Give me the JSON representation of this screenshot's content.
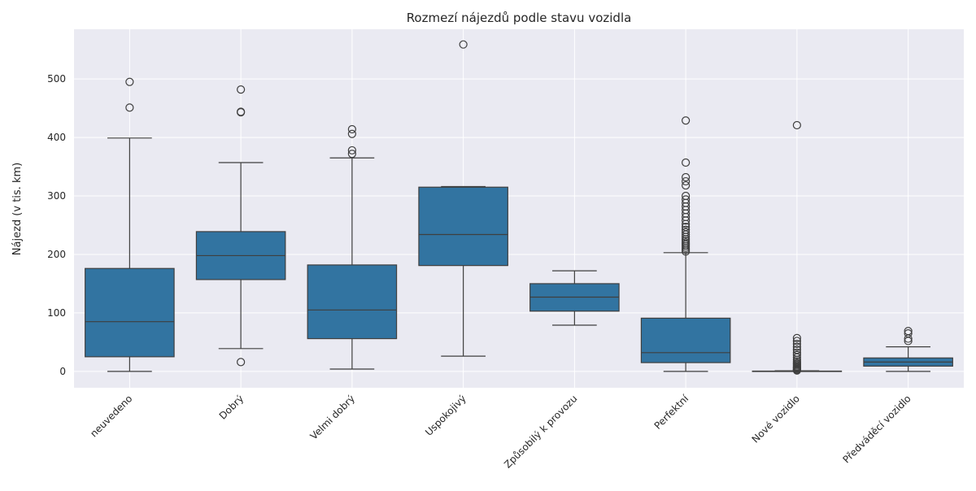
{
  "chart_data": {
    "type": "box",
    "title": "Rozmezí nájezdů podle stavu vozidla",
    "xlabel": "",
    "ylabel": "Nájezd (v tis. km)",
    "ylim": [
      -28,
      585
    ],
    "yticks": [
      0,
      100,
      200,
      300,
      400,
      500
    ],
    "grid": true,
    "background": "#eaeaf2",
    "box_color": "#3274a1",
    "line_color": "#3f3f3f",
    "categories": [
      "neuvedeno",
      "Dobrý",
      "Velmi dobrý",
      "Uspokojivý",
      "Způsobilý k provozu",
      "Perfektní",
      "Nové vozidlo",
      "Předváděcí vozidlo"
    ],
    "boxes": [
      {
        "category": "neuvedeno",
        "whisker_low": 0,
        "q1": 25,
        "median": 85,
        "q3": 176,
        "whisker_high": 399,
        "outliers": [
          451,
          495
        ]
      },
      {
        "category": "Dobrý",
        "whisker_low": 39,
        "q1": 157,
        "median": 198,
        "q3": 239,
        "whisker_high": 357,
        "outliers": [
          16,
          443,
          444,
          482
        ]
      },
      {
        "category": "Velmi dobrý",
        "whisker_low": 4,
        "q1": 56,
        "median": 105,
        "q3": 182,
        "whisker_high": 365,
        "outliers": [
          372,
          378,
          406,
          414
        ]
      },
      {
        "category": "Uspokojivý",
        "whisker_low": 26,
        "q1": 181,
        "median": 234,
        "q3": 315,
        "whisker_high": 316,
        "outliers": [
          559
        ]
      },
      {
        "category": "Způsobilý k provozu",
        "whisker_low": 79,
        "q1": 103,
        "median": 127,
        "q3": 150,
        "whisker_high": 172,
        "outliers": []
      },
      {
        "category": "Perfektní",
        "whisker_low": 0,
        "q1": 15,
        "median": 32,
        "q3": 91,
        "whisker_high": 203,
        "outliers": [
          205,
          208,
          211,
          214,
          217,
          220,
          223,
          226,
          230,
          234,
          238,
          242,
          247,
          252,
          258,
          264,
          270,
          276,
          282,
          288,
          294,
          300,
          318,
          325,
          332,
          357,
          429
        ]
      },
      {
        "category": "Nové vozidlo",
        "whisker_low": 0,
        "q1": 0,
        "median": 0,
        "q3": 0.5,
        "whisker_high": 1,
        "outliers": [
          1.5,
          2.5,
          3.5,
          5,
          6.5,
          8,
          10,
          12,
          14,
          17,
          20,
          24,
          28,
          32,
          37,
          42,
          47,
          52,
          57,
          421
        ]
      },
      {
        "category": "Předváděcí vozidlo",
        "whisker_low": 0,
        "q1": 9,
        "median": 16,
        "q3": 23,
        "whisker_high": 42,
        "outliers": [
          52,
          56,
          65,
          69
        ]
      }
    ]
  }
}
